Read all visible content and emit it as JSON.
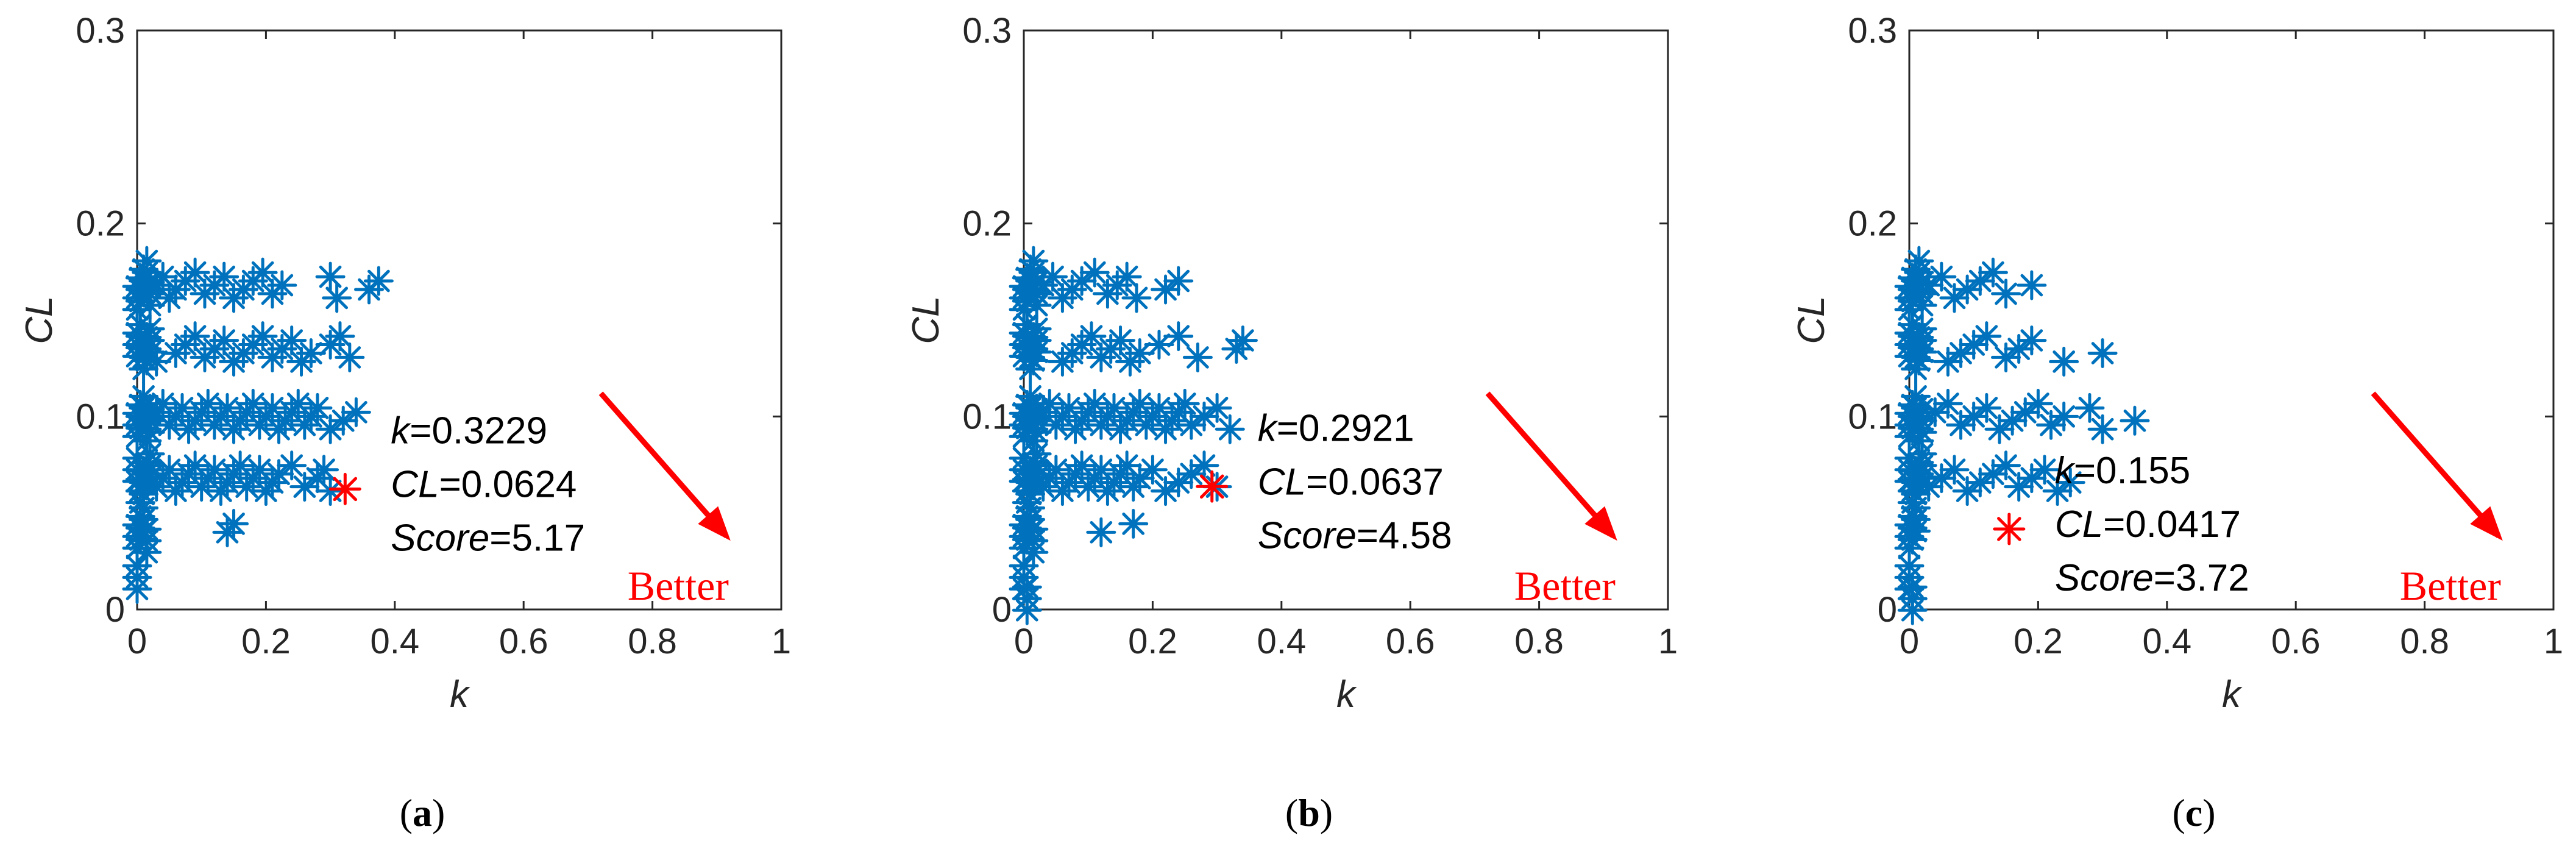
{
  "chart_data": [
    {
      "type": "scatter",
      "panel_label": "a",
      "xlabel": "k",
      "ylabel": "CL",
      "xlim": [
        0,
        1
      ],
      "ylim": [
        0,
        0.3
      ],
      "xticks": [
        "0",
        "0.2",
        "0.4",
        "0.6",
        "0.8",
        "1"
      ],
      "yticks": [
        "0",
        "0.1",
        "0.2",
        "0.3"
      ],
      "series_color": "#0072BD",
      "highlight_color": "#FF0000",
      "bands": [
        {
          "y": 0.168,
          "x": [
            0,
            0.005,
            0.01,
            0.015,
            0.02,
            0.03,
            0.04,
            0.05,
            0.06,
            0.075,
            0.09,
            0.105,
            0.12,
            0.135,
            0.15,
            0.165,
            0.18,
            0.195,
            0.21,
            0.225,
            0.3,
            0.31,
            0.36,
            0.375
          ]
        },
        {
          "y": 0.135,
          "x": [
            0,
            0.005,
            0.01,
            0.015,
            0.02,
            0.03,
            0.06,
            0.075,
            0.09,
            0.105,
            0.12,
            0.135,
            0.15,
            0.165,
            0.18,
            0.195,
            0.21,
            0.225,
            0.24,
            0.255,
            0.27,
            0.3,
            0.315,
            0.33
          ]
        },
        {
          "y": 0.1,
          "x": [
            0,
            0.005,
            0.01,
            0.015,
            0.02,
            0.03,
            0.04,
            0.05,
            0.06,
            0.07,
            0.08,
            0.09,
            0.1,
            0.11,
            0.12,
            0.13,
            0.14,
            0.15,
            0.16,
            0.17,
            0.18,
            0.19,
            0.2,
            0.21,
            0.22,
            0.23,
            0.24,
            0.25,
            0.26,
            0.27,
            0.28,
            0.3,
            0.32,
            0.34
          ]
        },
        {
          "y": 0.068,
          "x": [
            0,
            0.005,
            0.01,
            0.015,
            0.02,
            0.03,
            0.04,
            0.05,
            0.06,
            0.07,
            0.08,
            0.09,
            0.1,
            0.11,
            0.12,
            0.13,
            0.14,
            0.15,
            0.16,
            0.17,
            0.18,
            0.19,
            0.2,
            0.21,
            0.22,
            0.24,
            0.26,
            0.28,
            0.29,
            0.3
          ]
        },
        {
          "y": 0.04,
          "x": [
            0,
            0.005,
            0.01,
            0.015,
            0.14,
            0.15
          ]
        },
        {
          "y": 0.01,
          "x": [
            0
          ]
        }
      ],
      "highlight": {
        "x": 0.3229,
        "y": 0.0624
      },
      "annotation": {
        "k_prefix": "k",
        "k_value": "=0.3229",
        "cl_prefix": "CL",
        "cl_value": "=0.0624",
        "score_prefix": "Score",
        "score_value": "=5.17"
      },
      "better_label": "Better",
      "caption": "a"
    },
    {
      "type": "scatter",
      "panel_label": "b",
      "xlabel": "k",
      "ylabel": "CL",
      "xlim": [
        0,
        1
      ],
      "ylim": [
        0,
        0.3
      ],
      "xticks": [
        "0",
        "0.2",
        "0.4",
        "0.6",
        "0.8",
        "1"
      ],
      "yticks": [
        "0",
        "0.1",
        "0.2",
        "0.3"
      ],
      "series_color": "#0072BD",
      "highlight_color": "#FF0000",
      "bands": [
        {
          "y": 0.168,
          "x": [
            0,
            0.005,
            0.01,
            0.015,
            0.02,
            0.03,
            0.045,
            0.06,
            0.075,
            0.09,
            0.11,
            0.13,
            0.145,
            0.16,
            0.175,
            0.22,
            0.24
          ]
        },
        {
          "y": 0.135,
          "x": [
            0,
            0.005,
            0.01,
            0.015,
            0.02,
            0.06,
            0.075,
            0.09,
            0.105,
            0.12,
            0.135,
            0.15,
            0.165,
            0.18,
            0.21,
            0.24,
            0.27,
            0.33,
            0.34
          ]
        },
        {
          "y": 0.1,
          "x": [
            0,
            0.005,
            0.01,
            0.015,
            0.02,
            0.03,
            0.04,
            0.05,
            0.06,
            0.07,
            0.08,
            0.09,
            0.1,
            0.11,
            0.12,
            0.13,
            0.14,
            0.15,
            0.16,
            0.17,
            0.18,
            0.19,
            0.2,
            0.21,
            0.22,
            0.23,
            0.24,
            0.25,
            0.26,
            0.28,
            0.3,
            0.32
          ]
        },
        {
          "y": 0.068,
          "x": [
            0,
            0.005,
            0.01,
            0.015,
            0.02,
            0.03,
            0.04,
            0.05,
            0.06,
            0.07,
            0.08,
            0.09,
            0.1,
            0.11,
            0.12,
            0.13,
            0.14,
            0.15,
            0.16,
            0.17,
            0.18,
            0.2,
            0.22,
            0.24,
            0.26,
            0.28,
            0.3
          ]
        },
        {
          "y": 0.04,
          "x": [
            0,
            0.005,
            0.01,
            0.015,
            0.12,
            0.17
          ]
        },
        {
          "y": 0.01,
          "x": [
            0,
            0.005
          ]
        }
      ],
      "highlight": {
        "x": 0.2921,
        "y": 0.0637
      },
      "annotation": {
        "k_prefix": "k",
        "k_value": "=0.2921",
        "cl_prefix": "CL",
        "cl_value": "=0.0637",
        "score_prefix": "Score",
        "score_value": "=4.58"
      },
      "better_label": "Better",
      "caption": "b"
    },
    {
      "type": "scatter",
      "panel_label": "c",
      "xlabel": "k",
      "ylabel": "CL",
      "xlim": [
        0,
        1
      ],
      "ylim": [
        0,
        0.3
      ],
      "xticks": [
        "0",
        "0.2",
        "0.4",
        "0.6",
        "0.8",
        "1"
      ],
      "yticks": [
        "0",
        "0.1",
        "0.2",
        "0.3"
      ],
      "series_color": "#0072BD",
      "highlight_color": "#FF0000",
      "bands": [
        {
          "y": 0.168,
          "x": [
            0,
            0.005,
            0.01,
            0.015,
            0.02,
            0.03,
            0.05,
            0.07,
            0.09,
            0.11,
            0.13,
            0.15,
            0.19
          ]
        },
        {
          "y": 0.135,
          "x": [
            0,
            0.005,
            0.01,
            0.015,
            0.02,
            0.06,
            0.08,
            0.1,
            0.12,
            0.15,
            0.17,
            0.19,
            0.24,
            0.3
          ]
        },
        {
          "y": 0.1,
          "x": [
            0,
            0.005,
            0.01,
            0.015,
            0.02,
            0.04,
            0.06,
            0.08,
            0.1,
            0.12,
            0.14,
            0.16,
            0.18,
            0.2,
            0.22,
            0.24,
            0.28,
            0.3,
            0.35
          ]
        },
        {
          "y": 0.068,
          "x": [
            0,
            0.005,
            0.01,
            0.015,
            0.02,
            0.03,
            0.05,
            0.07,
            0.09,
            0.11,
            0.13,
            0.15,
            0.17,
            0.19,
            0.21,
            0.23,
            0.25
          ]
        },
        {
          "y": 0.04,
          "x": [
            0,
            0.005,
            0.01
          ]
        },
        {
          "y": 0.01,
          "x": [
            0,
            0.005
          ]
        }
      ],
      "highlight": {
        "x": 0.155,
        "y": 0.0417
      },
      "annotation": {
        "k_prefix": "k",
        "k_value": "=0.155",
        "cl_prefix": "CL",
        "cl_value": "=0.0417",
        "score_prefix": "Score",
        "score_value": "=3.72"
      },
      "better_label": "Better",
      "caption": "c"
    }
  ]
}
